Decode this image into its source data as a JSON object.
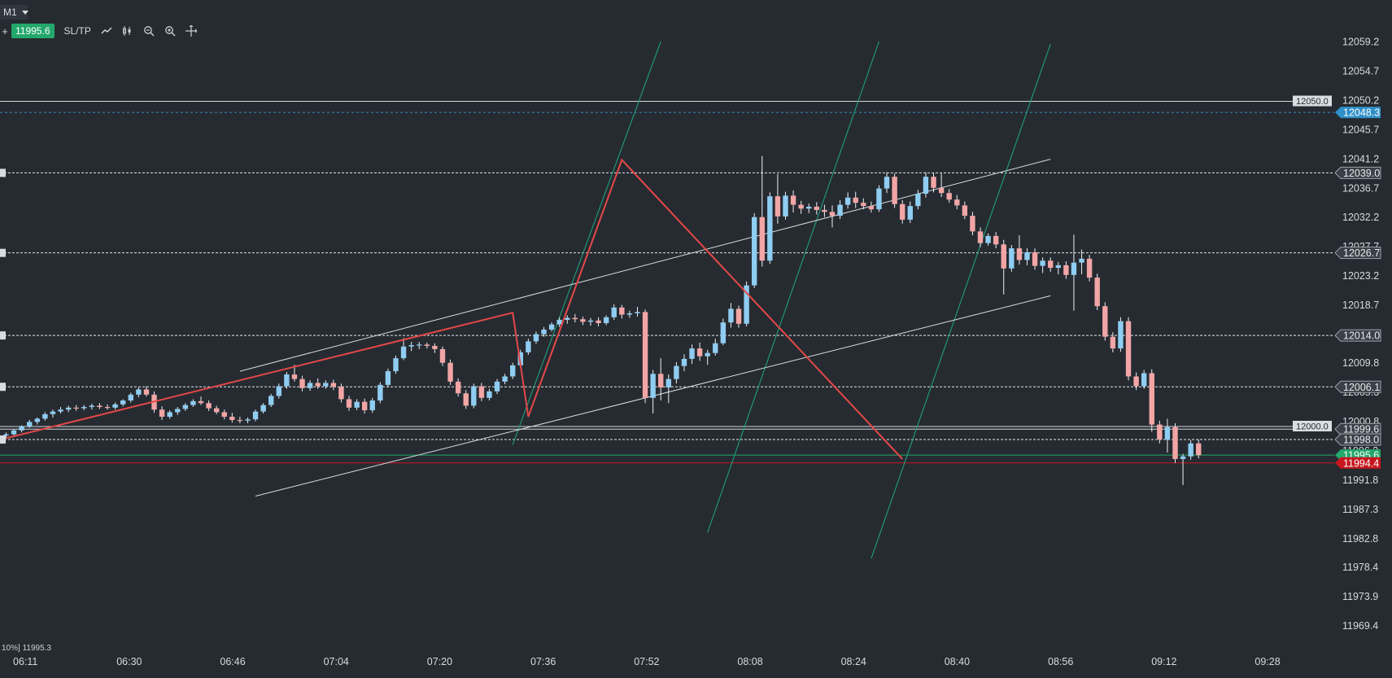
{
  "toolbar": {
    "timeframe": "M1",
    "plus_label": "+",
    "current_price": "11995.6",
    "sltp_label": "SL/TP",
    "icons": [
      "line-chart-icon",
      "candles-icon",
      "zoom-out-icon",
      "zoom-in-icon",
      "crosshair-icon"
    ]
  },
  "status": {
    "text": "10%] 11995.3"
  },
  "colors": {
    "background": "#262b31",
    "up_candle": "#8fcdf2",
    "down_candle": "#f2a5a5",
    "zigzag": "#e44848",
    "fib_lines": "#1f9f7a",
    "channel_lines": "#d8dde2",
    "current_price": "#23a86b",
    "bid_price": "#c7161e",
    "alert_blue": "#2f8fc8"
  },
  "chart_data": {
    "type": "candlestick",
    "title": "",
    "y_ticks": [
      "12059.2",
      "12054.7",
      "12050.2",
      "12045.7",
      "12041.2",
      "12036.7",
      "12032.2",
      "12027.7",
      "12023.2",
      "12018.7",
      "12014.2",
      "12009.8",
      "12005.3",
      "12000.8",
      "11996.3",
      "11991.8",
      "11987.3",
      "11982.8",
      "11978.4",
      "11973.9",
      "11969.4"
    ],
    "x_ticks": [
      "06:11",
      "06:30",
      "06:46",
      "07:04",
      "07:20",
      "07:36",
      "07:52",
      "08:08",
      "08:24",
      "08:40",
      "08:56",
      "09:12",
      "09:28"
    ],
    "ylim": [
      11969.4,
      12059.2
    ],
    "price_labels": {
      "level_12050": "12050.0",
      "alert_12048": "12048.3",
      "level_12039": "12039.0",
      "level_12026": "12026.7",
      "level_12014": "12014.0",
      "level_12006": "12006.1",
      "level_12000": "12000.0",
      "ask": "11999.6",
      "level_11998": "11998.0",
      "current": "11995.6",
      "bid": "11994.4"
    },
    "horizontal_levels": [
      12048.3,
      12039.0,
      12026.7,
      12014.0,
      12006.1,
      11998.0
    ],
    "solid_levels": [
      12050.0,
      12000.0,
      11999.6
    ],
    "current_price": 11995.6,
    "bid_price": 11994.4,
    "zigzag": [
      [
        0,
        11998.2
      ],
      [
        65,
        12017.5
      ],
      [
        67,
        12001.5
      ],
      [
        79,
        12041.0
      ],
      [
        115,
        11995.0
      ]
    ],
    "channel_lines": [
      [
        [
          30,
          12008.5
        ],
        [
          134,
          12041.1
        ]
      ],
      [
        [
          32,
          11989.3
        ],
        [
          134,
          12020.1
        ]
      ]
    ],
    "fib_lines": [
      [
        [
          65,
          11997.2
        ],
        [
          84,
          12059.2
        ]
      ],
      [
        [
          90,
          11983.7
        ],
        [
          112,
          12059.2
        ]
      ],
      [
        [
          111,
          11979.7
        ],
        [
          134,
          12058.8
        ]
      ]
    ],
    "candles": [
      {
        "o": 11998.6,
        "h": 11999.1,
        "l": 11998.2,
        "c": 11998.8
      },
      {
        "o": 11998.8,
        "h": 11999.6,
        "l": 11998.5,
        "c": 11999.4
      },
      {
        "o": 11999.4,
        "h": 12000.2,
        "l": 11999.1,
        "c": 12000.0
      },
      {
        "o": 12000.0,
        "h": 12001.0,
        "l": 11999.8,
        "c": 12000.7
      },
      {
        "o": 12000.7,
        "h": 12001.4,
        "l": 12000.3,
        "c": 12001.2
      },
      {
        "o": 12001.2,
        "h": 12002.2,
        "l": 12000.9,
        "c": 12001.9
      },
      {
        "o": 12001.9,
        "h": 12002.6,
        "l": 12001.4,
        "c": 12002.3
      },
      {
        "o": 12002.3,
        "h": 12003.0,
        "l": 12002.0,
        "c": 12002.6
      },
      {
        "o": 12002.6,
        "h": 12003.2,
        "l": 12002.2,
        "c": 12002.9
      },
      {
        "o": 12002.9,
        "h": 12003.3,
        "l": 12002.4,
        "c": 12002.8
      },
      {
        "o": 12002.8,
        "h": 12003.3,
        "l": 12002.5,
        "c": 12003.0
      },
      {
        "o": 12003.0,
        "h": 12003.5,
        "l": 12002.6,
        "c": 12003.2
      },
      {
        "o": 12003.2,
        "h": 12003.6,
        "l": 12002.7,
        "c": 12003.0
      },
      {
        "o": 12003.0,
        "h": 12003.4,
        "l": 12002.6,
        "c": 12002.9
      },
      {
        "o": 12002.9,
        "h": 12003.7,
        "l": 12002.6,
        "c": 12003.4
      },
      {
        "o": 12003.4,
        "h": 12004.2,
        "l": 12003.1,
        "c": 12004.0
      },
      {
        "o": 12004.0,
        "h": 12005.2,
        "l": 12003.7,
        "c": 12004.9
      },
      {
        "o": 12004.9,
        "h": 12006.0,
        "l": 12004.5,
        "c": 12005.7
      },
      {
        "o": 12005.7,
        "h": 12006.2,
        "l": 12004.6,
        "c": 12004.9
      },
      {
        "o": 12004.9,
        "h": 12005.4,
        "l": 12002.1,
        "c": 12002.6
      },
      {
        "o": 12002.6,
        "h": 12003.1,
        "l": 12001.0,
        "c": 12001.5
      },
      {
        "o": 12001.5,
        "h": 12002.5,
        "l": 12001.2,
        "c": 12002.2
      },
      {
        "o": 12002.2,
        "h": 12003.0,
        "l": 12001.8,
        "c": 12002.7
      },
      {
        "o": 12002.7,
        "h": 12003.6,
        "l": 12002.4,
        "c": 12003.3
      },
      {
        "o": 12003.3,
        "h": 12004.2,
        "l": 12003.0,
        "c": 12003.9
      },
      {
        "o": 12003.9,
        "h": 12004.6,
        "l": 12003.3,
        "c": 12003.6
      },
      {
        "o": 12003.6,
        "h": 12004.0,
        "l": 12002.4,
        "c": 12002.8
      },
      {
        "o": 12002.8,
        "h": 12003.2,
        "l": 12001.9,
        "c": 12002.2
      },
      {
        "o": 12002.2,
        "h": 12002.6,
        "l": 12001.1,
        "c": 12001.5
      },
      {
        "o": 12001.5,
        "h": 12002.1,
        "l": 12000.6,
        "c": 12001.0
      },
      {
        "o": 12001.0,
        "h": 12001.5,
        "l": 12000.5,
        "c": 12000.9
      },
      {
        "o": 12000.9,
        "h": 12001.4,
        "l": 12000.5,
        "c": 12001.1
      },
      {
        "o": 12001.1,
        "h": 12002.6,
        "l": 12000.8,
        "c": 12002.3
      },
      {
        "o": 12002.3,
        "h": 12003.6,
        "l": 12002.0,
        "c": 12003.3
      },
      {
        "o": 12003.3,
        "h": 12005.0,
        "l": 12003.0,
        "c": 12004.7
      },
      {
        "o": 12004.7,
        "h": 12006.6,
        "l": 12004.3,
        "c": 12006.2
      },
      {
        "o": 12006.2,
        "h": 12008.4,
        "l": 12005.8,
        "c": 12008.0
      },
      {
        "o": 12008.0,
        "h": 12009.5,
        "l": 12006.9,
        "c": 12007.3
      },
      {
        "o": 12007.3,
        "h": 12007.8,
        "l": 12005.4,
        "c": 12005.9
      },
      {
        "o": 12005.9,
        "h": 12007.1,
        "l": 12005.5,
        "c": 12006.7
      },
      {
        "o": 12006.7,
        "h": 12007.4,
        "l": 12005.8,
        "c": 12006.2
      },
      {
        "o": 12006.2,
        "h": 12007.1,
        "l": 12005.8,
        "c": 12006.7
      },
      {
        "o": 12006.7,
        "h": 12007.2,
        "l": 12005.6,
        "c": 12006.1
      },
      {
        "o": 12006.1,
        "h": 12006.6,
        "l": 12003.7,
        "c": 12004.2
      },
      {
        "o": 12004.2,
        "h": 12004.7,
        "l": 12002.4,
        "c": 12002.9
      },
      {
        "o": 12002.9,
        "h": 12004.2,
        "l": 12002.5,
        "c": 12003.8
      },
      {
        "o": 12003.8,
        "h": 12004.3,
        "l": 12002.0,
        "c": 12002.5
      },
      {
        "o": 12002.5,
        "h": 12004.4,
        "l": 12002.1,
        "c": 12004.0
      },
      {
        "o": 12004.0,
        "h": 12006.8,
        "l": 12003.6,
        "c": 12006.4
      },
      {
        "o": 12006.4,
        "h": 12008.9,
        "l": 12006.0,
        "c": 12008.5
      },
      {
        "o": 12008.5,
        "h": 12010.9,
        "l": 12008.1,
        "c": 12010.5
      },
      {
        "o": 12010.5,
        "h": 12013.6,
        "l": 12010.2,
        "c": 12012.3
      },
      {
        "o": 12012.3,
        "h": 12013.0,
        "l": 12011.6,
        "c": 12012.5
      },
      {
        "o": 12012.5,
        "h": 12013.0,
        "l": 12011.9,
        "c": 12012.6
      },
      {
        "o": 12012.6,
        "h": 12012.9,
        "l": 12012.0,
        "c": 12012.4
      },
      {
        "o": 12012.4,
        "h": 12012.8,
        "l": 12011.3,
        "c": 12011.9
      },
      {
        "o": 12011.9,
        "h": 12012.3,
        "l": 12009.3,
        "c": 12009.8
      },
      {
        "o": 12009.8,
        "h": 12010.3,
        "l": 12006.4,
        "c": 12006.9
      },
      {
        "o": 12006.9,
        "h": 12007.4,
        "l": 12004.6,
        "c": 12005.1
      },
      {
        "o": 12005.1,
        "h": 12005.6,
        "l": 12002.7,
        "c": 12003.2
      },
      {
        "o": 12003.2,
        "h": 12006.6,
        "l": 12002.8,
        "c": 12006.2
      },
      {
        "o": 12006.2,
        "h": 12006.7,
        "l": 12003.9,
        "c": 12004.4
      },
      {
        "o": 12004.4,
        "h": 12005.8,
        "l": 12004.0,
        "c": 12005.4
      },
      {
        "o": 12005.4,
        "h": 12007.3,
        "l": 12005.0,
        "c": 12006.9
      },
      {
        "o": 12006.9,
        "h": 12008.1,
        "l": 12006.5,
        "c": 12007.7
      },
      {
        "o": 12007.7,
        "h": 12009.8,
        "l": 12007.3,
        "c": 12009.4
      },
      {
        "o": 12009.4,
        "h": 12011.8,
        "l": 12009.0,
        "c": 12011.4
      },
      {
        "o": 12011.4,
        "h": 12013.5,
        "l": 12011.0,
        "c": 12013.1
      },
      {
        "o": 12013.1,
        "h": 12014.6,
        "l": 12012.7,
        "c": 12014.2
      },
      {
        "o": 12014.2,
        "h": 12015.3,
        "l": 12013.8,
        "c": 12014.9
      },
      {
        "o": 12014.9,
        "h": 12016.0,
        "l": 12014.6,
        "c": 12015.7
      },
      {
        "o": 12015.7,
        "h": 12016.8,
        "l": 12015.3,
        "c": 12016.4
      },
      {
        "o": 12016.4,
        "h": 12017.1,
        "l": 12015.8,
        "c": 12016.7
      },
      {
        "o": 12016.7,
        "h": 12017.3,
        "l": 12016.0,
        "c": 12016.5
      },
      {
        "o": 12016.5,
        "h": 12016.9,
        "l": 12015.6,
        "c": 12016.1
      },
      {
        "o": 12016.1,
        "h": 12016.7,
        "l": 12015.5,
        "c": 12016.3
      },
      {
        "o": 12016.3,
        "h": 12016.8,
        "l": 12015.4,
        "c": 12015.9
      },
      {
        "o": 12015.9,
        "h": 12017.1,
        "l": 12015.6,
        "c": 12016.8
      },
      {
        "o": 12016.8,
        "h": 12018.8,
        "l": 12016.4,
        "c": 12018.3
      },
      {
        "o": 12018.3,
        "h": 12018.7,
        "l": 12016.6,
        "c": 12017.2
      },
      {
        "o": 12017.2,
        "h": 12017.8,
        "l": 12016.7,
        "c": 12017.4
      },
      {
        "o": 12017.4,
        "h": 12018.4,
        "l": 12016.9,
        "c": 12017.6
      },
      {
        "o": 12017.6,
        "h": 12018.0,
        "l": 12003.6,
        "c": 12004.4
      },
      {
        "o": 12004.4,
        "h": 12008.7,
        "l": 12002.0,
        "c": 12008.1
      },
      {
        "o": 12008.1,
        "h": 12010.5,
        "l": 12004.0,
        "c": 12006.0
      },
      {
        "o": 12006.0,
        "h": 12008.0,
        "l": 12003.6,
        "c": 12007.3
      },
      {
        "o": 12007.3,
        "h": 12009.9,
        "l": 12006.6,
        "c": 12009.3
      },
      {
        "o": 12009.3,
        "h": 12011.1,
        "l": 12008.5,
        "c": 12010.4
      },
      {
        "o": 12010.4,
        "h": 12012.6,
        "l": 12009.6,
        "c": 12012.0
      },
      {
        "o": 12012.0,
        "h": 12012.9,
        "l": 12010.1,
        "c": 12010.8
      },
      {
        "o": 12010.8,
        "h": 12011.8,
        "l": 12009.5,
        "c": 12011.3
      },
      {
        "o": 12011.3,
        "h": 12013.5,
        "l": 12010.9,
        "c": 12012.8
      },
      {
        "o": 12012.8,
        "h": 12016.6,
        "l": 12012.5,
        "c": 12016.0
      },
      {
        "o": 12016.0,
        "h": 12019.0,
        "l": 12015.2,
        "c": 12018.1
      },
      {
        "o": 12018.1,
        "h": 12018.6,
        "l": 12015.2,
        "c": 12015.8
      },
      {
        "o": 12015.8,
        "h": 12022.3,
        "l": 12015.4,
        "c": 12021.7
      },
      {
        "o": 12021.7,
        "h": 12032.8,
        "l": 12021.3,
        "c": 12032.2
      },
      {
        "o": 12032.2,
        "h": 12041.6,
        "l": 12024.6,
        "c": 12025.5
      },
      {
        "o": 12025.5,
        "h": 12036.0,
        "l": 12025.0,
        "c": 12035.4
      },
      {
        "o": 12035.4,
        "h": 12038.8,
        "l": 12031.2,
        "c": 12032.3
      },
      {
        "o": 12032.3,
        "h": 12036.1,
        "l": 12031.8,
        "c": 12035.5
      },
      {
        "o": 12035.5,
        "h": 12036.3,
        "l": 12032.9,
        "c": 12034.1
      },
      {
        "o": 12034.1,
        "h": 12034.7,
        "l": 12032.7,
        "c": 12033.5
      },
      {
        "o": 12033.5,
        "h": 12034.3,
        "l": 12032.8,
        "c": 12033.8
      },
      {
        "o": 12033.8,
        "h": 12034.5,
        "l": 12032.6,
        "c": 12033.3
      },
      {
        "o": 12033.3,
        "h": 12034.1,
        "l": 12032.2,
        "c": 12033.0
      },
      {
        "o": 12033.0,
        "h": 12034.0,
        "l": 12030.6,
        "c": 12032.4
      },
      {
        "o": 12032.4,
        "h": 12034.8,
        "l": 12031.9,
        "c": 12034.1
      },
      {
        "o": 12034.1,
        "h": 12036.0,
        "l": 12033.5,
        "c": 12035.2
      },
      {
        "o": 12035.2,
        "h": 12036.1,
        "l": 12033.6,
        "c": 12034.4
      },
      {
        "o": 12034.4,
        "h": 12035.1,
        "l": 12033.4,
        "c": 12033.9
      },
      {
        "o": 12033.9,
        "h": 12034.6,
        "l": 12032.9,
        "c": 12033.4
      },
      {
        "o": 12033.4,
        "h": 12037.1,
        "l": 12033.0,
        "c": 12036.6
      },
      {
        "o": 12036.6,
        "h": 12039.1,
        "l": 12035.9,
        "c": 12038.4
      },
      {
        "o": 12038.4,
        "h": 12038.9,
        "l": 12033.6,
        "c": 12034.2
      },
      {
        "o": 12034.2,
        "h": 12034.8,
        "l": 12031.2,
        "c": 12031.8
      },
      {
        "o": 12031.8,
        "h": 12034.6,
        "l": 12031.3,
        "c": 12033.9
      },
      {
        "o": 12033.9,
        "h": 12036.4,
        "l": 12033.4,
        "c": 12035.8
      },
      {
        "o": 12035.8,
        "h": 12039.1,
        "l": 12035.2,
        "c": 12038.4
      },
      {
        "o": 12038.4,
        "h": 12039.0,
        "l": 12036.0,
        "c": 12036.7
      },
      {
        "o": 12036.7,
        "h": 12038.9,
        "l": 12035.3,
        "c": 12035.9
      },
      {
        "o": 12035.9,
        "h": 12036.5,
        "l": 12034.4,
        "c": 12034.9
      },
      {
        "o": 12034.9,
        "h": 12035.6,
        "l": 12033.4,
        "c": 12034.0
      },
      {
        "o": 12034.0,
        "h": 12034.6,
        "l": 12031.9,
        "c": 12032.4
      },
      {
        "o": 12032.4,
        "h": 12033.0,
        "l": 12029.4,
        "c": 12030.0
      },
      {
        "o": 12030.0,
        "h": 12030.6,
        "l": 12027.6,
        "c": 12028.2
      },
      {
        "o": 12028.2,
        "h": 12029.7,
        "l": 12027.8,
        "c": 12029.3
      },
      {
        "o": 12029.3,
        "h": 12029.9,
        "l": 12027.4,
        "c": 12028.0
      },
      {
        "o": 12028.0,
        "h": 12028.7,
        "l": 12020.3,
        "c": 12024.3
      },
      {
        "o": 12024.3,
        "h": 12027.9,
        "l": 12023.8,
        "c": 12027.4
      },
      {
        "o": 12027.4,
        "h": 12029.4,
        "l": 12024.9,
        "c": 12025.6
      },
      {
        "o": 12025.6,
        "h": 12027.4,
        "l": 12024.8,
        "c": 12026.8
      },
      {
        "o": 12026.8,
        "h": 12027.4,
        "l": 12024.1,
        "c": 12024.7
      },
      {
        "o": 12024.7,
        "h": 12026.0,
        "l": 12023.6,
        "c": 12025.5
      },
      {
        "o": 12025.5,
        "h": 12026.0,
        "l": 12023.8,
        "c": 12024.4
      },
      {
        "o": 12024.4,
        "h": 12025.3,
        "l": 12023.4,
        "c": 12024.8
      },
      {
        "o": 12024.8,
        "h": 12025.4,
        "l": 12022.7,
        "c": 12023.3
      },
      {
        "o": 12023.3,
        "h": 12029.5,
        "l": 12017.8,
        "c": 12025.2
      },
      {
        "o": 12025.2,
        "h": 12027.2,
        "l": 12023.4,
        "c": 12025.8
      },
      {
        "o": 12025.8,
        "h": 12026.4,
        "l": 12022.3,
        "c": 12022.9
      },
      {
        "o": 12022.9,
        "h": 12023.5,
        "l": 12017.9,
        "c": 12018.5
      },
      {
        "o": 12018.5,
        "h": 12019.1,
        "l": 12013.2,
        "c": 12013.8
      },
      {
        "o": 12013.8,
        "h": 12014.5,
        "l": 12011.4,
        "c": 12012.0
      },
      {
        "o": 12012.0,
        "h": 12016.8,
        "l": 12011.5,
        "c": 12016.2
      },
      {
        "o": 12016.2,
        "h": 12016.8,
        "l": 12007.1,
        "c": 12007.7
      },
      {
        "o": 12007.7,
        "h": 12008.3,
        "l": 12005.6,
        "c": 12006.2
      },
      {
        "o": 12006.2,
        "h": 12008.7,
        "l": 12005.8,
        "c": 12008.2
      },
      {
        "o": 12008.2,
        "h": 12008.8,
        "l": 11999.2,
        "c": 12000.3
      },
      {
        "o": 12000.3,
        "h": 12000.9,
        "l": 11997.4,
        "c": 11998.0
      },
      {
        "o": 11998.0,
        "h": 12001.2,
        "l": 11996.0,
        "c": 11999.9
      },
      {
        "o": 11999.9,
        "h": 12000.5,
        "l": 11994.4,
        "c": 11995.0
      },
      {
        "o": 11995.0,
        "h": 11995.8,
        "l": 11991.0,
        "c": 11995.4
      },
      {
        "o": 11995.4,
        "h": 11997.9,
        "l": 11994.9,
        "c": 11997.4
      },
      {
        "o": 11997.4,
        "h": 11998.0,
        "l": 11995.1,
        "c": 11995.6
      }
    ]
  }
}
